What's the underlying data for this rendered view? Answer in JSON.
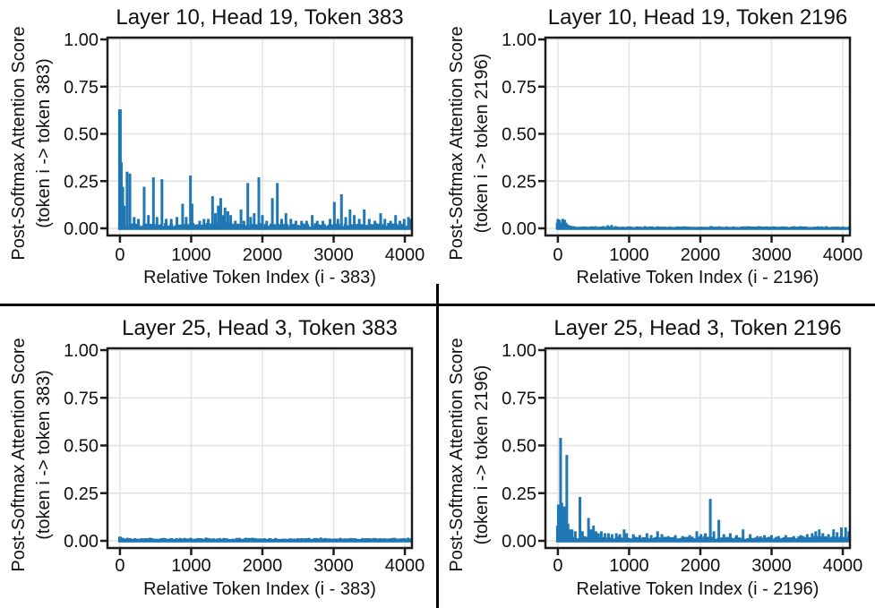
{
  "style": {
    "background": "#ffffff",
    "bar_color": "#1f77b4",
    "grid_color": "#e2e2e2",
    "spine_color": "#1c1c1c",
    "text_color": "#111111",
    "divider_color": "#000000"
  },
  "chart_data": [
    {
      "type": "bar",
      "title": "Layer 10, Head 19, Token 383",
      "ylabel_line1": "Post-Softmax Attention Score",
      "ylabel_line2": "(token i -> token 383)",
      "xlabel": "Relative Token Index (i - 383)",
      "xlim": [
        -175,
        4100
      ],
      "ylim": [
        0,
        1
      ],
      "grid": true,
      "yticks": [
        {
          "label": "1.00",
          "v": 1.0
        },
        {
          "label": "0.75",
          "v": 0.75
        },
        {
          "label": "0.50",
          "v": 0.5
        },
        {
          "label": "0.25",
          "v": 0.25
        },
        {
          "label": "0.00",
          "v": 0.0
        }
      ],
      "xticks": [
        {
          "label": "0",
          "v": 0
        },
        {
          "label": "1000",
          "v": 1000
        },
        {
          "label": "2000",
          "v": 2000
        },
        {
          "label": "3000",
          "v": 3000
        },
        {
          "label": "4000",
          "v": 4000
        }
      ],
      "baseline": 0.008,
      "noise": 0.02,
      "spikes": [
        [
          0,
          0.63,
          4
        ],
        [
          20,
          0.35
        ],
        [
          40,
          0.22
        ],
        [
          60,
          0.12
        ],
        [
          100,
          0.3
        ],
        [
          140,
          0.29
        ],
        [
          200,
          0.06
        ],
        [
          260,
          0.05
        ],
        [
          340,
          0.22
        ],
        [
          400,
          0.07
        ],
        [
          470,
          0.27
        ],
        [
          520,
          0.06
        ],
        [
          590,
          0.26
        ],
        [
          650,
          0.05
        ],
        [
          720,
          0.05
        ],
        [
          800,
          0.06
        ],
        [
          880,
          0.13
        ],
        [
          930,
          0.06
        ],
        [
          990,
          0.28
        ],
        [
          1012,
          0.13
        ],
        [
          1120,
          0.04
        ],
        [
          1180,
          0.05
        ],
        [
          1240,
          0.05
        ],
        [
          1300,
          0.17
        ],
        [
          1340,
          0.08
        ],
        [
          1380,
          0.12
        ],
        [
          1415,
          0.16
        ],
        [
          1445,
          0.07
        ],
        [
          1475,
          0.11
        ],
        [
          1515,
          0.09
        ],
        [
          1555,
          0.07
        ],
        [
          1620,
          0.04
        ],
        [
          1700,
          0.1
        ],
        [
          1740,
          0.04
        ],
        [
          1795,
          0.24
        ],
        [
          1835,
          0.06
        ],
        [
          1885,
          0.08
        ],
        [
          1950,
          0.27
        ],
        [
          2000,
          0.07
        ],
        [
          2060,
          0.04
        ],
        [
          2140,
          0.16
        ],
        [
          2210,
          0.24
        ],
        [
          2270,
          0.05
        ],
        [
          2330,
          0.08
        ],
        [
          2400,
          0.05
        ],
        [
          2470,
          0.04
        ],
        [
          2550,
          0.04
        ],
        [
          2620,
          0.04
        ],
        [
          2700,
          0.07
        ],
        [
          2770,
          0.04
        ],
        [
          2850,
          0.04
        ],
        [
          2950,
          0.05
        ],
        [
          3010,
          0.14
        ],
        [
          3060,
          0.05
        ],
        [
          3110,
          0.18
        ],
        [
          3170,
          0.06
        ],
        [
          3230,
          0.1
        ],
        [
          3290,
          0.07
        ],
        [
          3360,
          0.05
        ],
        [
          3430,
          0.1
        ],
        [
          3500,
          0.05
        ],
        [
          3580,
          0.04
        ],
        [
          3660,
          0.08
        ],
        [
          3720,
          0.05
        ],
        [
          3800,
          0.04
        ],
        [
          3870,
          0.07
        ],
        [
          3930,
          0.04
        ],
        [
          3990,
          0.05
        ],
        [
          4050,
          0.06
        ],
        [
          4085,
          0.05
        ]
      ]
    },
    {
      "type": "bar",
      "title": "Layer 10, Head 19, Token 2196",
      "ylabel_line1": "Post-Softmax Attention Score",
      "ylabel_line2": "(token i -> token 2196)",
      "xlabel": "Relative Token Index (i - 2196)",
      "xlim": [
        -175,
        4100
      ],
      "ylim": [
        0,
        1
      ],
      "grid": true,
      "yticks": [
        {
          "label": "1.00",
          "v": 1.0
        },
        {
          "label": "0.75",
          "v": 0.75
        },
        {
          "label": "0.50",
          "v": 0.5
        },
        {
          "label": "0.25",
          "v": 0.25
        },
        {
          "label": "0.00",
          "v": 0.0
        }
      ],
      "xticks": [
        {
          "label": "0",
          "v": 0
        },
        {
          "label": "1000",
          "v": 1000
        },
        {
          "label": "2000",
          "v": 2000
        },
        {
          "label": "3000",
          "v": 3000
        },
        {
          "label": "4000",
          "v": 4000
        }
      ],
      "baseline": 0.006,
      "noise": 0.005,
      "spikes": [
        [
          -10,
          0.03
        ],
        [
          0,
          0.05,
          3
        ],
        [
          25,
          0.045
        ],
        [
          45,
          0.03
        ],
        [
          70,
          0.05
        ],
        [
          95,
          0.045
        ],
        [
          115,
          0.03
        ],
        [
          140,
          0.02
        ],
        [
          170,
          0.015
        ],
        [
          210,
          0.012
        ],
        [
          500,
          0.01
        ],
        [
          640,
          0.012
        ],
        [
          700,
          0.016
        ],
        [
          755,
          0.018
        ],
        [
          810,
          0.012
        ],
        [
          1000,
          0.01
        ],
        [
          1400,
          0.011
        ],
        [
          1700,
          0.009
        ],
        [
          2100,
          0.008
        ],
        [
          2700,
          0.008
        ],
        [
          3300,
          0.008
        ]
      ]
    },
    {
      "type": "bar",
      "title": "Layer 25, Head 3, Token 383",
      "ylabel_line1": "Post-Softmax Attention Score",
      "ylabel_line2": "(token i -> token 383)",
      "xlabel": "Relative Token Index (i - 383)",
      "xlim": [
        -175,
        4100
      ],
      "ylim": [
        0,
        1
      ],
      "grid": true,
      "yticks": [
        {
          "label": "1.00",
          "v": 1.0
        },
        {
          "label": "0.75",
          "v": 0.75
        },
        {
          "label": "0.50",
          "v": 0.5
        },
        {
          "label": "0.25",
          "v": 0.25
        },
        {
          "label": "0.00",
          "v": 0.0
        }
      ],
      "xticks": [
        {
          "label": "0",
          "v": 0
        },
        {
          "label": "1000",
          "v": 1000
        },
        {
          "label": "2000",
          "v": 2000
        },
        {
          "label": "3000",
          "v": 3000
        },
        {
          "label": "4000",
          "v": 4000
        }
      ],
      "baseline": 0.009,
      "noise": 0.007,
      "spikes": [
        [
          0,
          0.022,
          4
        ],
        [
          40,
          0.016
        ],
        [
          300,
          0.014
        ],
        [
          700,
          0.013
        ],
        [
          1200,
          0.012
        ],
        [
          1800,
          0.012
        ],
        [
          2400,
          0.013
        ],
        [
          3000,
          0.012
        ],
        [
          3600,
          0.013
        ]
      ]
    },
    {
      "type": "bar",
      "title": "Layer 25, Head 3, Token 2196",
      "ylabel_line1": "Post-Softmax Attention Score",
      "ylabel_line2": "(token i -> token 2196)",
      "xlabel": "Relative Token Index (i - 2196)",
      "xlim": [
        -175,
        4100
      ],
      "ylim": [
        0,
        1
      ],
      "grid": true,
      "yticks": [
        {
          "label": "1.00",
          "v": 1.0
        },
        {
          "label": "0.75",
          "v": 0.75
        },
        {
          "label": "0.50",
          "v": 0.5
        },
        {
          "label": "0.25",
          "v": 0.25
        },
        {
          "label": "0.00",
          "v": 0.0
        }
      ],
      "xticks": [
        {
          "label": "0",
          "v": 0
        },
        {
          "label": "1000",
          "v": 1000
        },
        {
          "label": "2000",
          "v": 2000
        },
        {
          "label": "3000",
          "v": 3000
        },
        {
          "label": "4000",
          "v": 4000
        }
      ],
      "baseline": 0.01,
      "noise": 0.014,
      "spikes": [
        [
          0,
          0.08,
          4
        ],
        [
          12,
          0.16
        ],
        [
          25,
          0.19,
          6
        ],
        [
          38,
          0.54
        ],
        [
          55,
          0.2
        ],
        [
          70,
          0.17
        ],
        [
          85,
          0.18,
          7
        ],
        [
          105,
          0.15
        ],
        [
          125,
          0.45
        ],
        [
          142,
          0.09
        ],
        [
          165,
          0.06
        ],
        [
          200,
          0.06
        ],
        [
          245,
          0.05
        ],
        [
          310,
          0.23
        ],
        [
          345,
          0.05
        ],
        [
          430,
          0.12
        ],
        [
          465,
          0.06
        ],
        [
          500,
          0.08
        ],
        [
          535,
          0.05
        ],
        [
          570,
          0.04
        ],
        [
          610,
          0.05
        ],
        [
          660,
          0.04
        ],
        [
          710,
          0.04
        ],
        [
          760,
          0.035
        ],
        [
          820,
          0.04
        ],
        [
          870,
          0.035
        ],
        [
          930,
          0.06
        ],
        [
          965,
          0.04
        ],
        [
          1060,
          0.035
        ],
        [
          1150,
          0.03
        ],
        [
          1250,
          0.04
        ],
        [
          1310,
          0.03
        ],
        [
          1400,
          0.05
        ],
        [
          1460,
          0.035
        ],
        [
          1550,
          0.025
        ],
        [
          1650,
          0.03
        ],
        [
          1750,
          0.025
        ],
        [
          1850,
          0.03
        ],
        [
          1950,
          0.05
        ],
        [
          2010,
          0.035
        ],
        [
          2070,
          0.04
        ],
        [
          2140,
          0.22
        ],
        [
          2190,
          0.05
        ],
        [
          2260,
          0.11
        ],
        [
          2330,
          0.035
        ],
        [
          2420,
          0.04
        ],
        [
          2510,
          0.03
        ],
        [
          2600,
          0.06
        ],
        [
          2700,
          0.035
        ],
        [
          2800,
          0.025
        ],
        [
          2900,
          0.03
        ],
        [
          3000,
          0.03
        ],
        [
          3100,
          0.025
        ],
        [
          3200,
          0.03
        ],
        [
          3310,
          0.025
        ],
        [
          3410,
          0.03
        ],
        [
          3500,
          0.035
        ],
        [
          3570,
          0.04
        ],
        [
          3620,
          0.05
        ],
        [
          3670,
          0.06
        ],
        [
          3720,
          0.04
        ],
        [
          3800,
          0.035
        ],
        [
          3870,
          0.06
        ],
        [
          3920,
          0.045
        ],
        [
          3980,
          0.07
        ],
        [
          4040,
          0.07
        ],
        [
          4085,
          0.05
        ]
      ]
    }
  ]
}
